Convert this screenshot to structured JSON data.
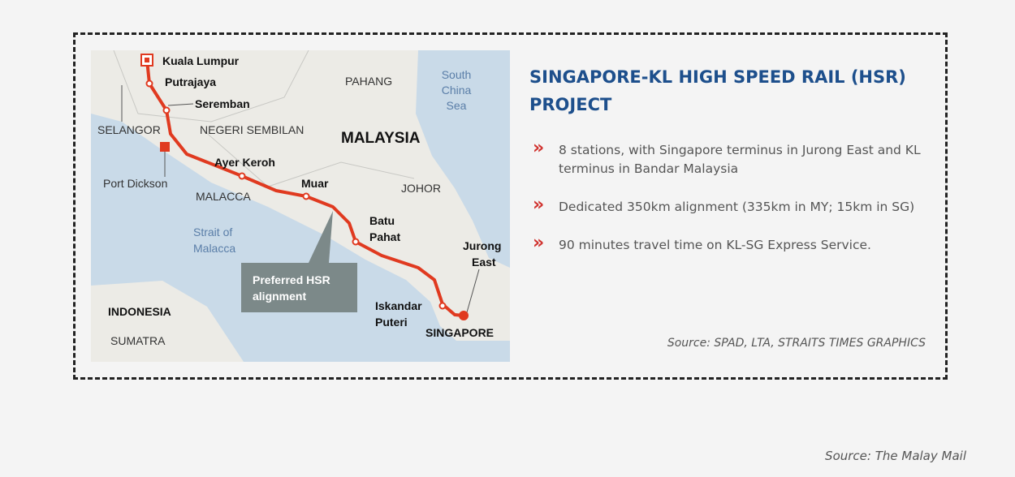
{
  "map": {
    "labels": {
      "kuala_lumpur": "Kuala Lumpur",
      "putrajaya": "Putrajaya",
      "seremban": "Seremban",
      "selangor": "SELANGOR",
      "negeri_sembilan": "NEGERI SEMBILAN",
      "malaysia": "MALAYSIA",
      "pahang": "PAHANG",
      "south_china_sea": [
        "South",
        "China",
        "Sea"
      ],
      "port_dickson": "Port Dickson",
      "ayer_keroh": "Ayer Keroh",
      "malacca": "MALACCA",
      "muar": "Muar",
      "johor": "JOHOR",
      "batu_pahat": [
        "Batu",
        "Pahat"
      ],
      "strait_of_malacca": [
        "Strait of",
        "Malacca"
      ],
      "jurong_east": [
        "Jurong",
        "East"
      ],
      "preferred": [
        "Preferred HSR",
        "alignment"
      ],
      "indonesia": "INDONESIA",
      "sumatra": "SUMATRA",
      "iskandar_puteri": [
        "Iskandar",
        "Puteri"
      ],
      "singapore": "SINGAPORE"
    }
  },
  "title": "SINGAPORE-KL HIGH SPEED RAIL (HSR) PROJECT",
  "bullets": [
    "8 stations, with Singapore terminus in Jurong East and KL terminus in Bandar Malaysia",
    "Dedicated 350km alignment (335km in MY; 15km in SG)",
    "90 minutes travel time on KL-SG Express Service."
  ],
  "source": "Source: SPAD, LTA, STRAITS TIMES GRAPHICS",
  "footer_source": "Source: The Malay Mail"
}
